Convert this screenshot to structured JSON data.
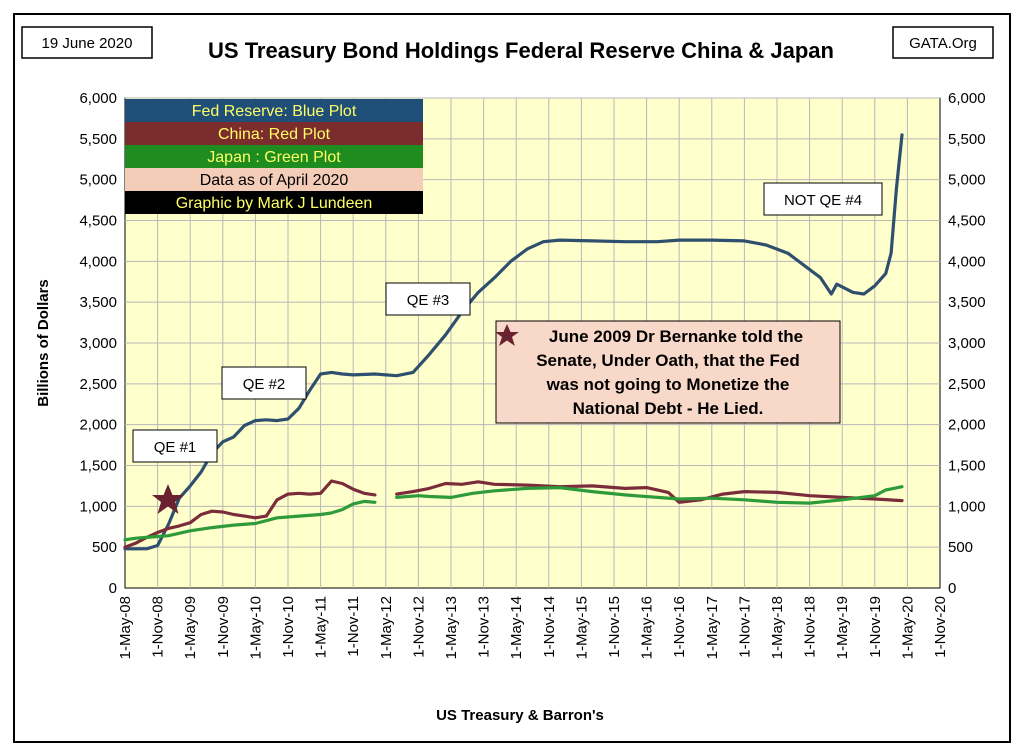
{
  "chart_data": {
    "type": "line",
    "title": "US Treasury Bond Holdings Federal Reserve China & Japan",
    "date_label": "19 June 2020",
    "source_badge": "GATA.Org",
    "xlabel": "US Treasury & Barron's",
    "ylabel": "Billions of Dollars",
    "ylim": [
      0,
      6000
    ],
    "y_ticks": [
      "0",
      "500",
      "1,000",
      "1,500",
      "2,000",
      "2,500",
      "3,000",
      "3,500",
      "4,000",
      "4,500",
      "5,000",
      "5,500",
      "6,000"
    ],
    "x_ticks": [
      "1-May-08",
      "1-Nov-08",
      "1-May-09",
      "1-Nov-09",
      "1-May-10",
      "1-Nov-10",
      "1-May-11",
      "1-Nov-11",
      "1-May-12",
      "1-Nov-12",
      "1-May-13",
      "1-Nov-13",
      "1-May-14",
      "1-Nov-14",
      "1-May-15",
      "1-Nov-15",
      "1-May-16",
      "1-Nov-16",
      "1-May-17",
      "1-Nov-17",
      "1-May-18",
      "1-Nov-18",
      "1-May-19",
      "1-Nov-19",
      "1-May-20",
      "1-Nov-20"
    ],
    "grid": true,
    "legend_box": [
      {
        "text": "Fed Reserve: Blue Plot",
        "bg": "#1f4e79",
        "fg": "#ffff66"
      },
      {
        "text": "China: Red Plot",
        "bg": "#7b2c2c",
        "fg": "#ffff66"
      },
      {
        "text": "Japan : Green Plot",
        "bg": "#1e8c1e",
        "fg": "#ffff66"
      },
      {
        "text": "Data as of April 2020",
        "bg": "#f4cdb8",
        "fg": "#000000"
      },
      {
        "text": "Graphic by Mark J Lundeen",
        "bg": "#000000",
        "fg": "#ffff66"
      }
    ],
    "annotations": {
      "qe1": "QE #1",
      "qe2": "QE #2",
      "qe3": "QE #3",
      "qe4": "NOT QE #4",
      "bernanke": [
        "June 2009 Dr Bernanke told the",
        "Senate, Under Oath, that the Fed",
        "was not going to Monetize the",
        "National Debt - He Lied."
      ]
    },
    "series": [
      {
        "name": "Fed Reserve: Blue Plot",
        "color": "#2e4f6e",
        "points": [
          [
            "2008-05",
            480
          ],
          [
            "2008-09",
            480
          ],
          [
            "2008-11",
            520
          ],
          [
            "2009-01",
            780
          ],
          [
            "2009-03",
            1100
          ],
          [
            "2009-05",
            1250
          ],
          [
            "2009-07",
            1420
          ],
          [
            "2009-09",
            1650
          ],
          [
            "2009-11",
            1790
          ],
          [
            "2010-01",
            1850
          ],
          [
            "2010-03",
            1990
          ],
          [
            "2010-05",
            2050
          ],
          [
            "2010-07",
            2060
          ],
          [
            "2010-09",
            2050
          ],
          [
            "2010-11",
            2070
          ],
          [
            "2011-01",
            2200
          ],
          [
            "2011-03",
            2420
          ],
          [
            "2011-05",
            2620
          ],
          [
            "2011-07",
            2640
          ],
          [
            "2011-09",
            2620
          ],
          [
            "2011-11",
            2610
          ],
          [
            "2012-03",
            2620
          ],
          [
            "2012-07",
            2600
          ],
          [
            "2012-10",
            2640
          ],
          [
            "2013-01",
            2860
          ],
          [
            "2013-04",
            3100
          ],
          [
            "2013-07",
            3380
          ],
          [
            "2013-10",
            3620
          ],
          [
            "2014-01",
            3800
          ],
          [
            "2014-04",
            4000
          ],
          [
            "2014-07",
            4150
          ],
          [
            "2014-10",
            4240
          ],
          [
            "2015-01",
            4260
          ],
          [
            "2015-07",
            4250
          ],
          [
            "2016-01",
            4240
          ],
          [
            "2016-07",
            4240
          ],
          [
            "2016-11",
            4260
          ],
          [
            "2017-05",
            4260
          ],
          [
            "2017-11",
            4250
          ],
          [
            "2018-03",
            4200
          ],
          [
            "2018-07",
            4100
          ],
          [
            "2018-11",
            3900
          ],
          [
            "2019-01",
            3800
          ],
          [
            "2019-03",
            3600
          ],
          [
            "2019-04",
            3720
          ],
          [
            "2019-07",
            3620
          ],
          [
            "2019-09",
            3600
          ],
          [
            "2019-11",
            3700
          ],
          [
            "2020-01",
            3850
          ],
          [
            "2020-02",
            4100
          ],
          [
            "2020-03",
            4900
          ],
          [
            "2020-04",
            5550
          ]
        ]
      },
      {
        "name": "China: Red Plot",
        "color": "#7b2c3a",
        "points": [
          [
            "2008-05",
            500
          ],
          [
            "2008-07",
            550
          ],
          [
            "2008-09",
            620
          ],
          [
            "2008-11",
            680
          ],
          [
            "2009-01",
            730
          ],
          [
            "2009-03",
            760
          ],
          [
            "2009-05",
            800
          ],
          [
            "2009-07",
            900
          ],
          [
            "2009-09",
            940
          ],
          [
            "2009-11",
            930
          ],
          [
            "2010-01",
            900
          ],
          [
            "2010-03",
            880
          ],
          [
            "2010-05",
            860
          ],
          [
            "2010-07",
            880
          ],
          [
            "2010-09",
            1080
          ],
          [
            "2010-11",
            1150
          ],
          [
            "2011-01",
            1160
          ],
          [
            "2011-03",
            1150
          ],
          [
            "2011-05",
            1160
          ],
          [
            "2011-07",
            1310
          ],
          [
            "2011-09",
            1280
          ],
          [
            "2011-11",
            1210
          ],
          [
            "2012-01",
            1160
          ],
          [
            "2012-03",
            1140
          ],
          null,
          [
            "2012-07",
            1150
          ],
          [
            "2012-10",
            1180
          ],
          [
            "2013-01",
            1220
          ],
          [
            "2013-04",
            1280
          ],
          [
            "2013-07",
            1270
          ],
          [
            "2013-10",
            1300
          ],
          [
            "2014-01",
            1270
          ],
          [
            "2014-07",
            1260
          ],
          [
            "2015-01",
            1240
          ],
          [
            "2015-07",
            1250
          ],
          [
            "2016-01",
            1220
          ],
          [
            "2016-05",
            1230
          ],
          [
            "2016-09",
            1170
          ],
          [
            "2016-11",
            1050
          ],
          [
            "2017-03",
            1080
          ],
          [
            "2017-07",
            1150
          ],
          [
            "2017-11",
            1180
          ],
          [
            "2018-05",
            1170
          ],
          [
            "2018-11",
            1130
          ],
          [
            "2019-05",
            1110
          ],
          [
            "2019-11",
            1090
          ],
          [
            "2020-04",
            1070
          ]
        ]
      },
      {
        "name": "Japan : Green Plot",
        "color": "#2e9b3a",
        "points": [
          [
            "2008-05",
            590
          ],
          [
            "2008-07",
            610
          ],
          [
            "2008-09",
            620
          ],
          [
            "2008-11",
            630
          ],
          [
            "2009-01",
            640
          ],
          [
            "2009-05",
            700
          ],
          [
            "2009-09",
            740
          ],
          [
            "2010-01",
            770
          ],
          [
            "2010-05",
            790
          ],
          [
            "2010-09",
            860
          ],
          [
            "2011-01",
            880
          ],
          [
            "2011-05",
            900
          ],
          [
            "2011-07",
            920
          ],
          [
            "2011-09",
            960
          ],
          [
            "2011-11",
            1030
          ],
          [
            "2012-01",
            1060
          ],
          [
            "2012-03",
            1050
          ],
          null,
          [
            "2012-07",
            1110
          ],
          [
            "2012-11",
            1130
          ],
          [
            "2013-01",
            1120
          ],
          [
            "2013-05",
            1110
          ],
          [
            "2013-09",
            1160
          ],
          [
            "2014-01",
            1190
          ],
          [
            "2014-07",
            1220
          ],
          [
            "2015-01",
            1230
          ],
          [
            "2015-07",
            1180
          ],
          [
            "2016-01",
            1140
          ],
          [
            "2016-07",
            1110
          ],
          [
            "2016-11",
            1090
          ],
          [
            "2017-05",
            1100
          ],
          [
            "2017-11",
            1080
          ],
          [
            "2018-05",
            1050
          ],
          [
            "2018-11",
            1040
          ],
          [
            "2019-05",
            1080
          ],
          [
            "2019-11",
            1130
          ],
          [
            "2020-01",
            1200
          ],
          [
            "2020-04",
            1240
          ]
        ]
      }
    ]
  }
}
